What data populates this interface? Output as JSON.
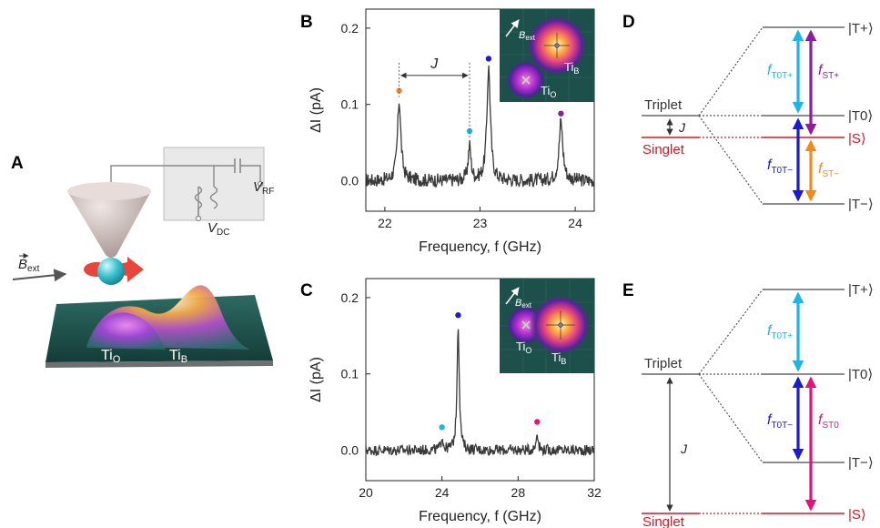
{
  "panels": {
    "A": {
      "letter": "A",
      "labels": {
        "v_rf": "V",
        "v_rf_sub": "RF",
        "v_dc": "V",
        "v_dc_sub": "DC",
        "b_ext": "B",
        "b_ext_sub": "ext",
        "ti_o": "Ti",
        "ti_o_sub": "O",
        "ti_b": "Ti",
        "ti_b_sub": "B"
      },
      "colors": {
        "tip": "#c8b6b2",
        "sphere": "#36c2cf",
        "arrow": "#e8453c",
        "surface": "#1e4d48"
      }
    },
    "B": {
      "letter": "B",
      "annotations": {
        "j": "J"
      },
      "inset": {
        "b_ext": "B",
        "b_ext_sub": "ext",
        "ti_b": "Ti",
        "ti_b_sub": "B",
        "ti_o": "Ti",
        "ti_o_sub": "O"
      }
    },
    "C": {
      "letter": "C",
      "inset": {
        "b_ext": "B",
        "b_ext_sub": "ext",
        "ti_o": "Ti",
        "ti_o_sub": "O",
        "ti_b": "Ti",
        "ti_b_sub": "B"
      }
    },
    "D": {
      "letter": "D",
      "triplet": "Triplet",
      "singlet": "Singlet",
      "j": "J",
      "states": {
        "tp": "|T+⟩",
        "t0": "|T0⟩",
        "s": "|S⟩",
        "tm": "|T−⟩"
      },
      "transitions": [
        {
          "f": "f",
          "sub": "T0T+",
          "color": "#1fb4e6"
        },
        {
          "f": "f",
          "sub": "ST+",
          "color": "#8a1e9e"
        },
        {
          "f": "f",
          "sub": "T0T−",
          "color": "#1c1ccc"
        },
        {
          "f": "f",
          "sub": "ST−",
          "color": "#f08a1c"
        }
      ]
    },
    "E": {
      "letter": "E",
      "triplet": "Triplet",
      "singlet": "Singlet",
      "j": "J",
      "states": {
        "tp": "|T+⟩",
        "t0": "|T0⟩",
        "tm": "|T−⟩",
        "s": "|S⟩"
      },
      "transitions": [
        {
          "f": "f",
          "sub": "T0T+",
          "color": "#1fb4e6"
        },
        {
          "f": "f",
          "sub": "T0T−",
          "color": "#1c1ccc"
        },
        {
          "f": "f",
          "sub": "ST0",
          "color": "#e0157a"
        }
      ]
    }
  },
  "chart_data": [
    {
      "id": "B",
      "type": "line",
      "xlabel": "Frequency, f (GHz)",
      "ylabel": "ΔI (pA)",
      "xlim": [
        21.8,
        24.2
      ],
      "ylim": [
        -0.04,
        0.225
      ],
      "xticks": [
        22,
        23,
        24
      ],
      "yticks": [
        0.0,
        0.1,
        0.2
      ],
      "ytick_labels": [
        "0.0",
        "0.1",
        "0.2"
      ],
      "series": [
        {
          "color": "#3a3a3a",
          "baseline": 0.0,
          "noise": 0.009,
          "peaks": [
            {
              "x": 22.15,
              "height": 0.105,
              "width": 0.022
            },
            {
              "x": 22.89,
              "height": 0.045,
              "width": 0.018
            },
            {
              "x": 23.09,
              "height": 0.148,
              "width": 0.022
            },
            {
              "x": 23.85,
              "height": 0.078,
              "width": 0.024
            }
          ]
        }
      ],
      "markers": [
        {
          "x": 22.15,
          "y": 0.118,
          "color": "#f08a1c"
        },
        {
          "x": 22.89,
          "y": 0.065,
          "color": "#1fb4e6"
        },
        {
          "x": 23.09,
          "y": 0.16,
          "color": "#1c1ccc"
        },
        {
          "x": 23.85,
          "y": 0.088,
          "color": "#8a1e9e"
        }
      ],
      "j_bracket": {
        "x1": 22.15,
        "x2": 22.89,
        "y": 0.138
      }
    },
    {
      "id": "C",
      "type": "line",
      "xlabel": "Frequency, f (GHz)",
      "ylabel": "ΔI (pA)",
      "xlim": [
        20,
        32
      ],
      "ylim": [
        -0.04,
        0.225
      ],
      "xticks": [
        20,
        24,
        28,
        32
      ],
      "yticks": [
        0.0,
        0.1,
        0.2
      ],
      "ytick_labels": [
        "0.0",
        "0.1",
        "0.2"
      ],
      "series": [
        {
          "color": "#3a3a3a",
          "baseline": 0.0,
          "noise": 0.007,
          "peaks": [
            {
              "x": 24.0,
              "height": 0.018,
              "width": 0.06
            },
            {
              "x": 24.85,
              "height": 0.165,
              "width": 0.07
            },
            {
              "x": 29.0,
              "height": 0.025,
              "width": 0.06
            }
          ]
        }
      ],
      "markers": [
        {
          "x": 24.0,
          "y": 0.03,
          "color": "#1fb4e6"
        },
        {
          "x": 24.85,
          "y": 0.177,
          "color": "#1c1ccc"
        },
        {
          "x": 29.0,
          "y": 0.037,
          "color": "#e0157a"
        }
      ]
    }
  ]
}
